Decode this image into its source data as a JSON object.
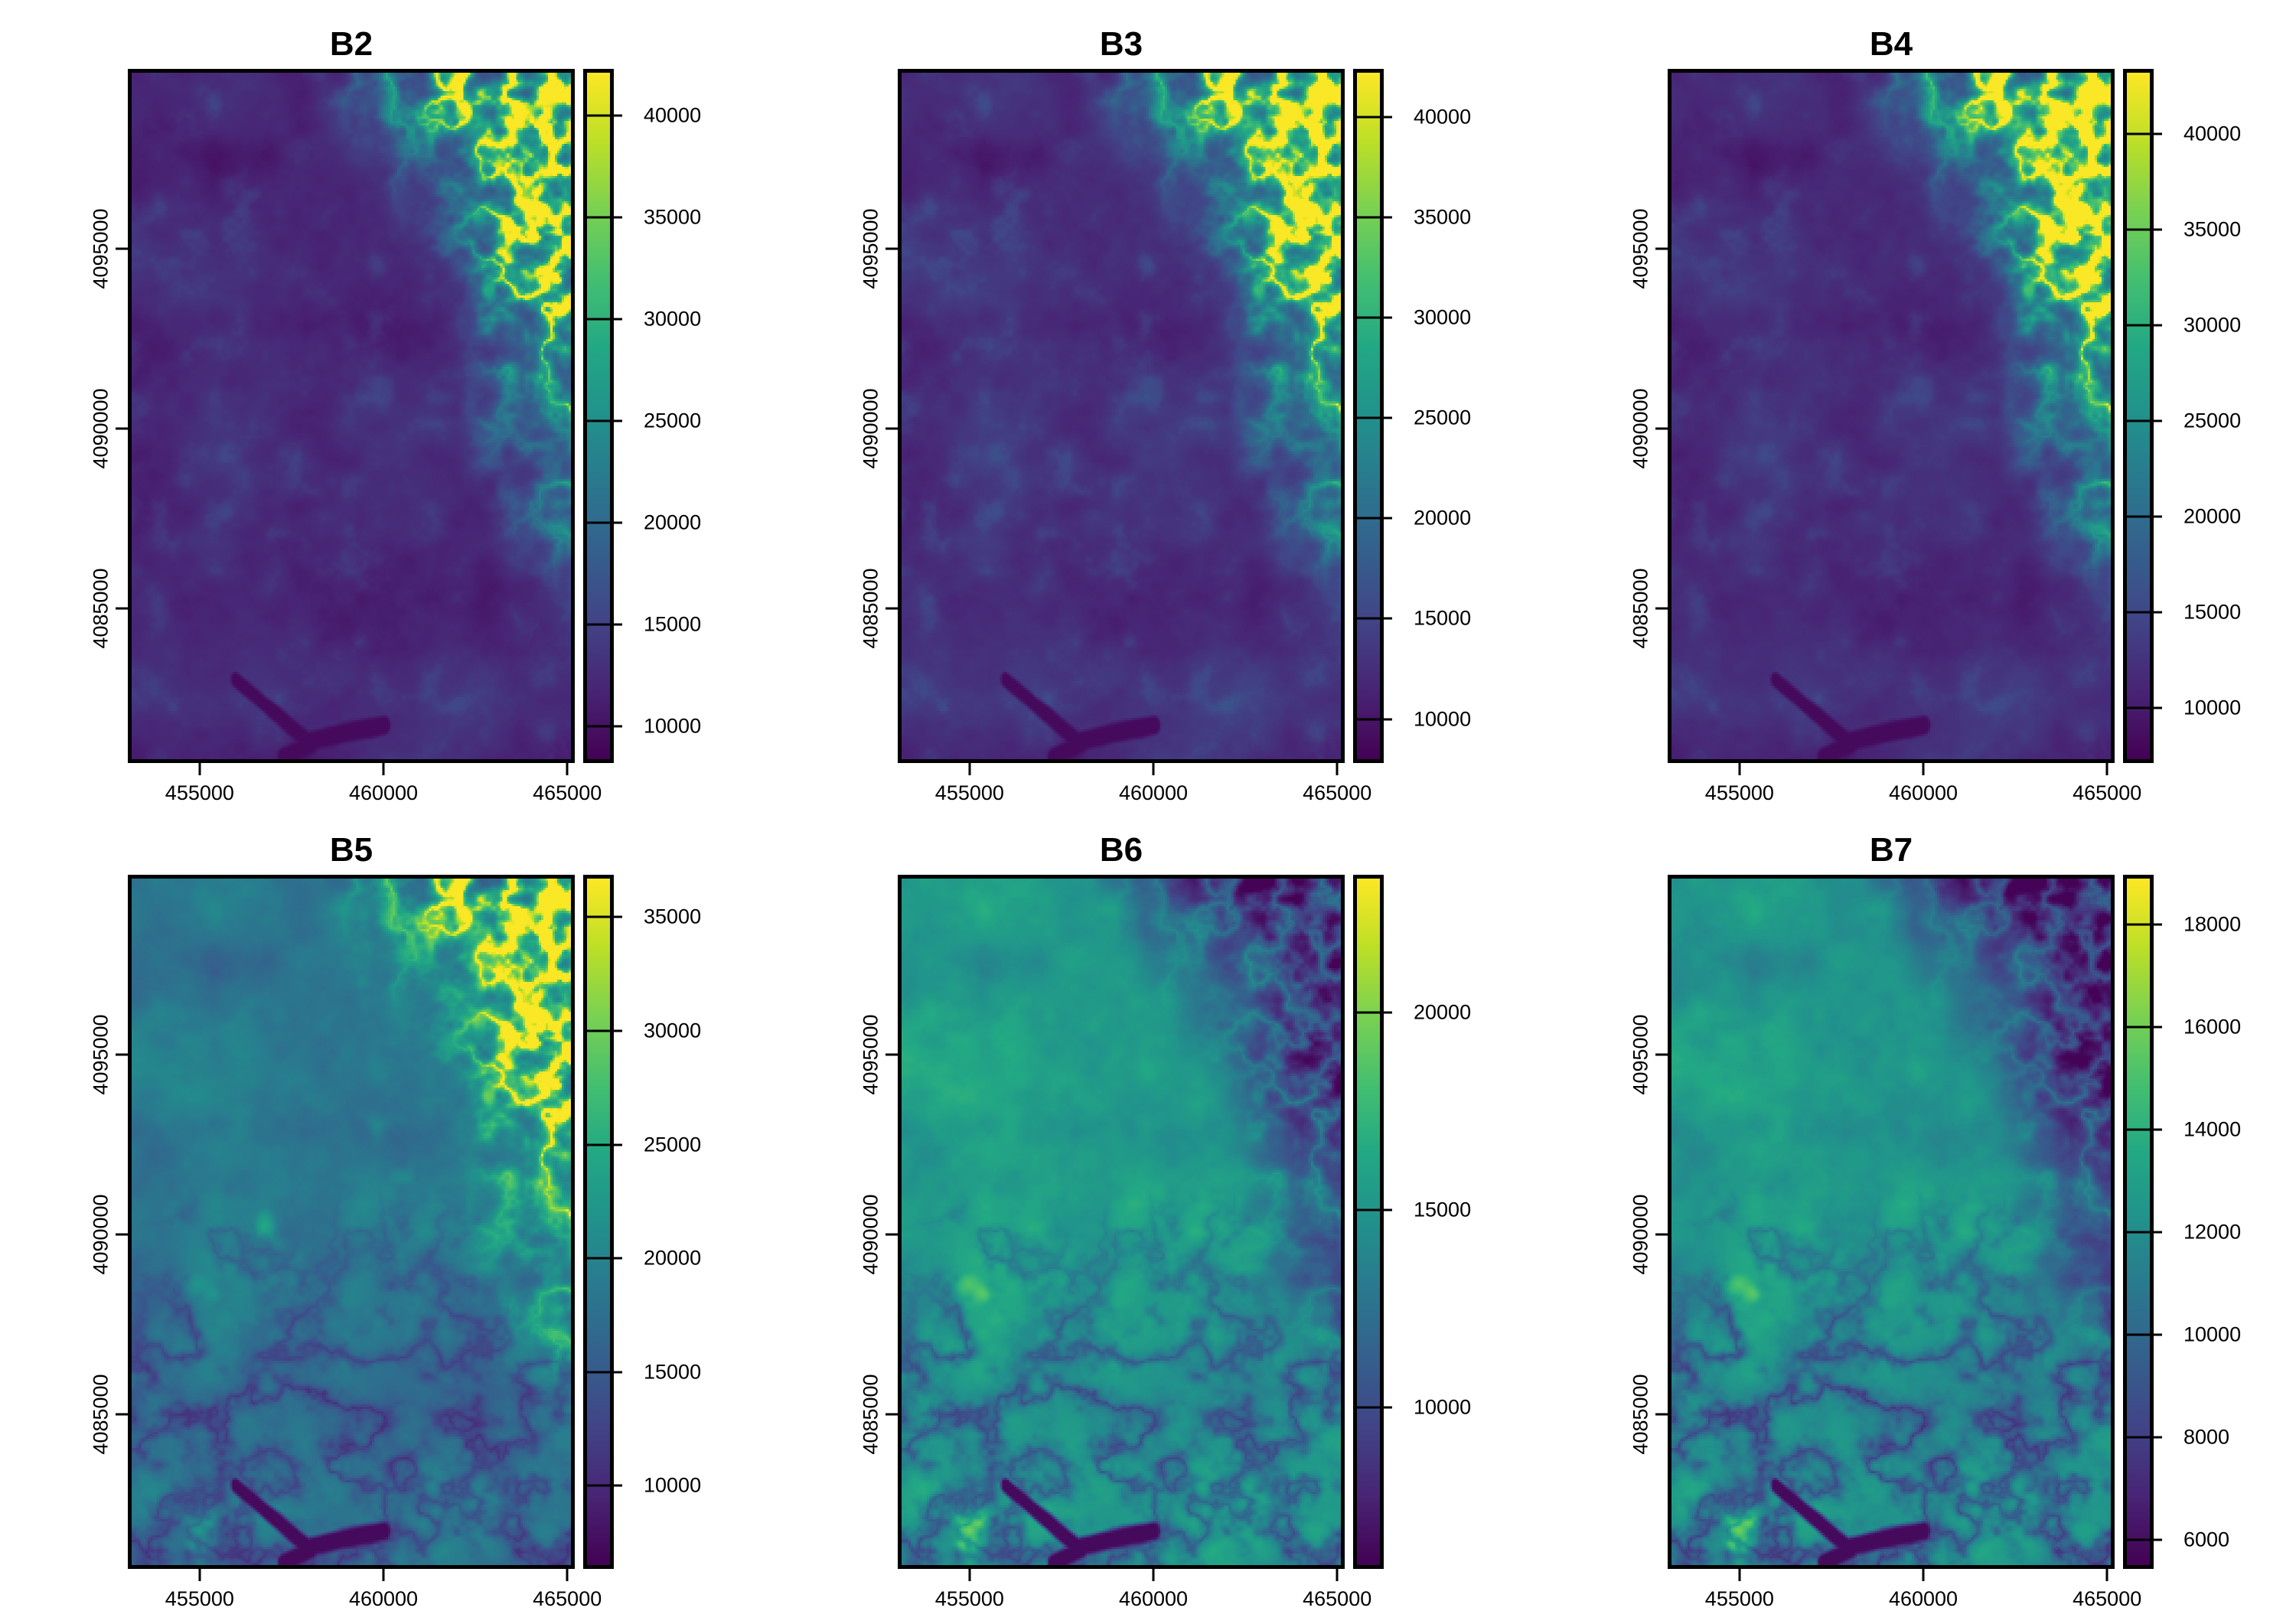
{
  "figure": {
    "background": "#ffffff",
    "kind": "2x3 grid of single-band satellite raster maps, each with its own viridis colorbar legend"
  },
  "palette": {
    "name": "viridis",
    "stops": [
      "#440154",
      "#482475",
      "#414487",
      "#355f8d",
      "#2a788e",
      "#21918c",
      "#22a884",
      "#44bf70",
      "#7ad151",
      "#bddf26",
      "#fde725"
    ]
  },
  "chart_data": [
    {
      "type": "heatmap",
      "title": "B2",
      "colormap": "viridis",
      "x_range": [
        453150,
        465100
      ],
      "y_range": [
        4080800,
        4099900
      ],
      "x_ticks": [
        455000,
        460000,
        465000
      ],
      "x_tick_labels": [
        "455000",
        "460000",
        "465000"
      ],
      "y_ticks": [
        4095000,
        4090000,
        4085000
      ],
      "y_tick_labels": [
        "4095000",
        "4090000",
        "4085000"
      ],
      "value_range": [
        8400,
        42100
      ],
      "colorbar_ticks": [
        40000,
        35000,
        30000,
        25000,
        20000,
        15000,
        10000
      ],
      "colorbar_tick_labels": [
        "40000",
        "35000",
        "30000",
        "25000",
        "20000",
        "15000",
        "10000"
      ],
      "appearance": "mostly dark purple lowlands; bright yellow-green dendritic canyon network in northeast corner; faint dark reservoir at bottom"
    },
    {
      "type": "heatmap",
      "title": "B3",
      "colormap": "viridis",
      "x_range": [
        453150,
        465100
      ],
      "y_range": [
        4080800,
        4099900
      ],
      "x_ticks": [
        455000,
        460000,
        465000
      ],
      "x_tick_labels": [
        "455000",
        "460000",
        "465000"
      ],
      "y_ticks": [
        4095000,
        4090000,
        4085000
      ],
      "y_tick_labels": [
        "4095000",
        "4090000",
        "4085000"
      ],
      "value_range": [
        8000,
        42200
      ],
      "colorbar_ticks": [
        40000,
        35000,
        30000,
        25000,
        20000,
        15000,
        10000
      ],
      "colorbar_tick_labels": [
        "40000",
        "35000",
        "30000",
        "25000",
        "20000",
        "15000",
        "10000"
      ],
      "appearance": "dark purple base slightly brighter than B2; bright dendritic network in northeast corner"
    },
    {
      "type": "heatmap",
      "title": "B4",
      "colormap": "viridis",
      "x_range": [
        453150,
        465100
      ],
      "y_range": [
        4080800,
        4099900
      ],
      "x_ticks": [
        455000,
        460000,
        465000
      ],
      "x_tick_labels": [
        "455000",
        "460000",
        "465000"
      ],
      "y_ticks": [
        4095000,
        4090000,
        4085000
      ],
      "y_tick_labels": [
        "4095000",
        "4090000",
        "4085000"
      ],
      "value_range": [
        7300,
        43200
      ],
      "colorbar_ticks": [
        40000,
        35000,
        30000,
        25000,
        20000,
        15000,
        10000
      ],
      "colorbar_tick_labels": [
        "40000",
        "35000",
        "30000",
        "25000",
        "20000",
        "15000",
        "10000"
      ],
      "appearance": "dark purple base; strongest yellow dendritic highlights of the purple-background bands in northeast corner"
    },
    {
      "type": "heatmap",
      "title": "B5",
      "colormap": "viridis",
      "x_range": [
        453150,
        465100
      ],
      "y_range": [
        4080800,
        4099900
      ],
      "x_ticks": [
        455000,
        460000,
        465000
      ],
      "x_tick_labels": [
        "455000",
        "460000",
        "465000"
      ],
      "y_ticks": [
        4095000,
        4090000,
        4085000
      ],
      "y_tick_labels": [
        "4095000",
        "4090000",
        "4085000"
      ],
      "value_range": [
        6500,
        36700
      ],
      "colorbar_ticks": [
        35000,
        30000,
        25000,
        20000,
        15000,
        10000
      ],
      "colorbar_tick_labels": [
        "35000",
        "30000",
        "25000",
        "20000",
        "15000",
        "10000"
      ],
      "appearance": "blue-teal terrain with bright yellow dendritic network in northeast; dark purple branched reservoir at bottom center-left"
    },
    {
      "type": "heatmap",
      "title": "B6",
      "colormap": "viridis",
      "x_range": [
        453150,
        465100
      ],
      "y_range": [
        4080800,
        4099900
      ],
      "x_ticks": [
        455000,
        460000,
        465000
      ],
      "x_tick_labels": [
        "455000",
        "460000",
        "465000"
      ],
      "y_ticks": [
        4095000,
        4090000,
        4085000
      ],
      "y_tick_labels": [
        "4095000",
        "4090000",
        "4085000"
      ],
      "value_range": [
        6000,
        23400
      ],
      "colorbar_ticks": [
        20000,
        15000,
        10000
      ],
      "colorbar_tick_labels": [
        "20000",
        "15000",
        "10000"
      ],
      "appearance": "teal-green terrain with yellow patches in south and west; dark purple rugged zone in northeast corner; dark reservoir at bottom"
    },
    {
      "type": "heatmap",
      "title": "B7",
      "colormap": "viridis",
      "x_range": [
        453150,
        465100
      ],
      "y_range": [
        4080800,
        4099900
      ],
      "x_ticks": [
        455000,
        460000,
        465000
      ],
      "x_tick_labels": [
        "455000",
        "460000",
        "465000"
      ],
      "y_ticks": [
        4095000,
        4090000,
        4085000
      ],
      "y_tick_labels": [
        "4095000",
        "4090000",
        "4085000"
      ],
      "value_range": [
        5500,
        18900
      ],
      "colorbar_ticks": [
        18000,
        16000,
        14000,
        12000,
        10000,
        8000,
        6000
      ],
      "colorbar_tick_labels": [
        "18000",
        "16000",
        "14000",
        "12000",
        "10000",
        "8000",
        "6000"
      ],
      "appearance": "teal-green terrain with scattered yellow patches; dark purple rugged zone in northeast corner; dark reservoir at bottom"
    }
  ]
}
